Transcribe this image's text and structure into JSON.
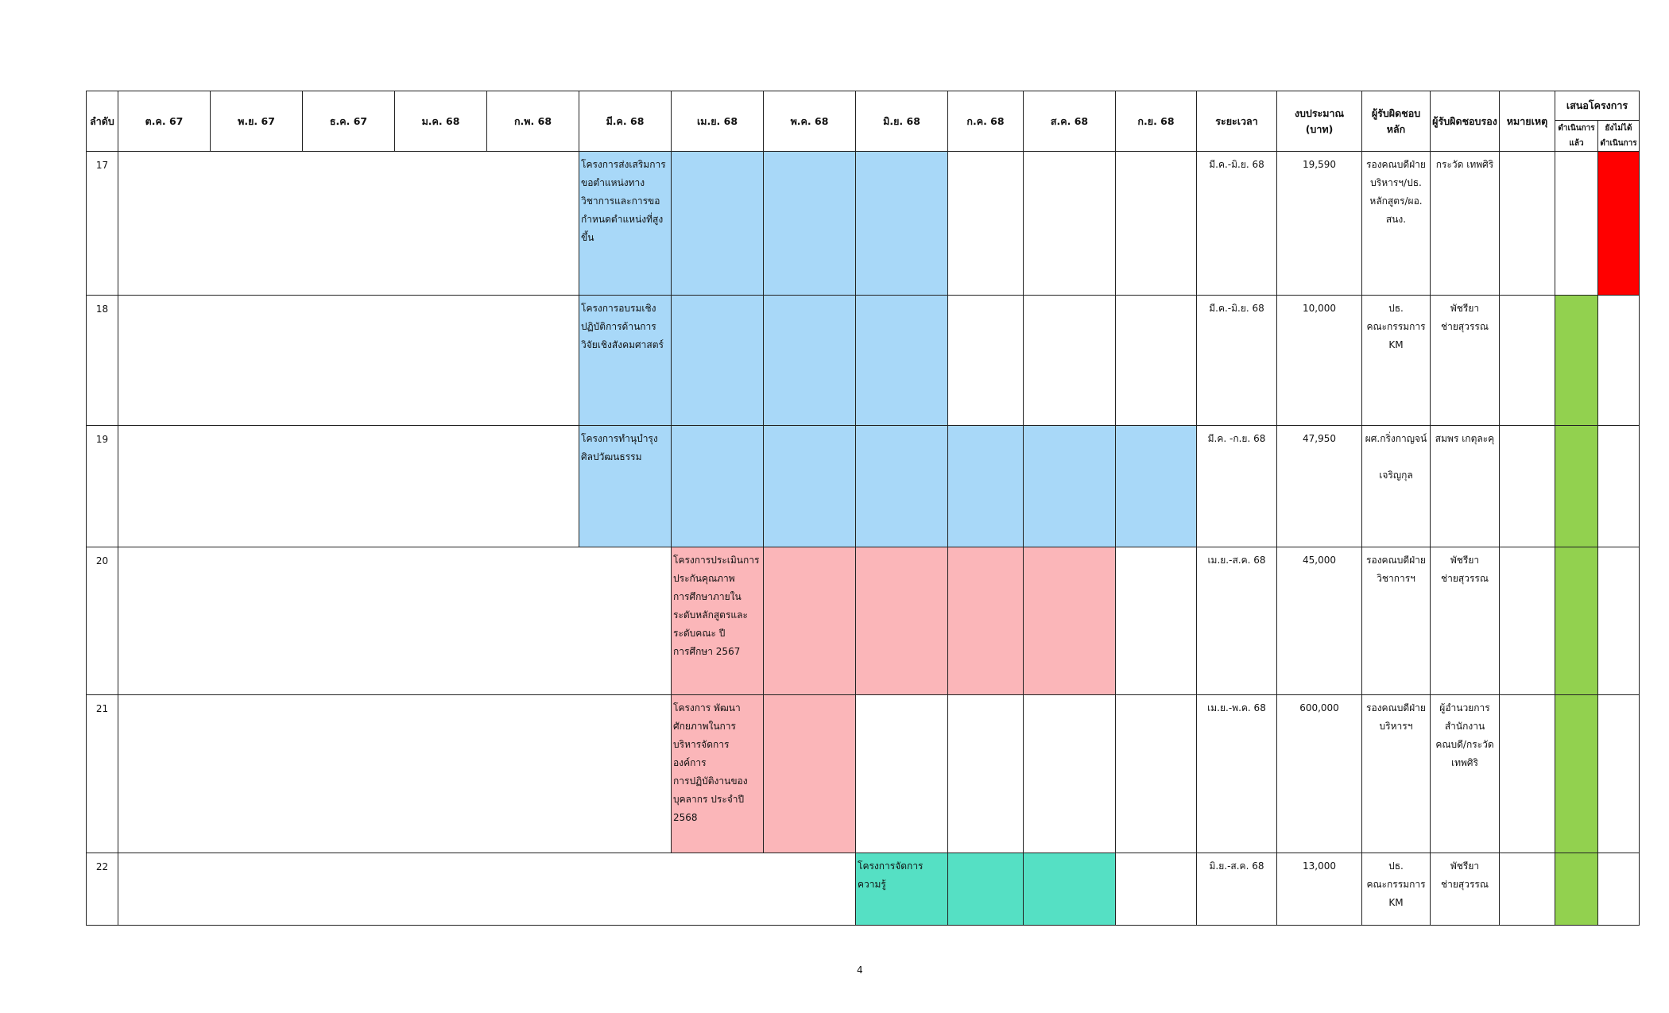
{
  "table": {
    "headers": {
      "order": "ลำดับ",
      "months": [
        "ต.ค. 67",
        "พ.ย. 67",
        "ธ.ค. 67",
        "ม.ค. 68",
        "ก.พ. 68",
        "มี.ค. 68",
        "เม.ย. 68",
        "พ.ค. 68",
        "มิ.ย. 68",
        "ก.ค. 68",
        "ส.ค. 68",
        "ก.ย. 68"
      ],
      "period": "ระยะเวลา",
      "budget_line1": "งบประมาณ",
      "budget_line2": "(บาท)",
      "responsible_main_line1": "ผู้รับผิดชอบ",
      "responsible_main_line2": "หลัก",
      "responsible_secondary": "ผู้รับผิดชอบรอง",
      "remarks": "หมายเหตุ",
      "proposal": "เสนอโครงการ",
      "done_line1": "ดำเนินการ",
      "done_line2": "แล้ว",
      "notyet_line1": "ยังไม่ได้",
      "notyet_line2": "ดำเนินการ"
    },
    "colors": {
      "bar_blue": "#a8d8f8",
      "bar_pink": "#fbb6b9",
      "bar_teal": "#55e0c4",
      "status_done": "#92d14f",
      "status_not_done": "#ff0000"
    },
    "rows": [
      {
        "no": "17",
        "project_lines": [
          "โครงการส่งเสริมการ",
          "ขอตำแหน่งทาง",
          "วิชาการและการขอ",
          "กำหนดตำแหน่งที่สูงขึ้น"
        ],
        "period": "มี.ค.-มิ.ย. 68",
        "budget": "19,590",
        "main_lines": [
          "รองคณบดีฝ่าย",
          "บริหารฯ/ปธ.",
          "หลักสูตร/ผอ.",
          "สนง."
        ],
        "secondary_lines": [
          "กระวัด เทพศิริ"
        ],
        "status": "not_done"
      },
      {
        "no": "18",
        "project_lines": [
          "โครงการอบรมเชิง",
          "ปฏิบัติการด้านการ",
          "วิจัยเชิงสังคมศาสตร์"
        ],
        "period": "มี.ค.-มิ.ย. 68",
        "budget": "10,000",
        "main_lines": [
          "ปธ.",
          "คณะกรรมการ",
          "KM"
        ],
        "secondary_lines": [
          "พัชรียา",
          "ช่ายสุวรรณ"
        ],
        "status": "done"
      },
      {
        "no": "19",
        "project_lines": [
          "โครงการทำนุบำรุง",
          "ศิลปวัฒนธรรม"
        ],
        "period": "มี.ค. -ก.ย. 68",
        "budget": "47,950",
        "main_lines": [
          "ผศ.กริ่งกาญจน์",
          "",
          "เจริญกุล"
        ],
        "secondary_lines": [
          "สมพร เกตุละคุ"
        ],
        "status": "done"
      },
      {
        "no": "20",
        "project_lines": [
          "โครงการประเมินการ",
          "ประกันคุณภาพ",
          "การศึกษาภายใน",
          "ระดับหลักสูตรและ",
          "ระดับคณะ ปี",
          "การศึกษา 2567"
        ],
        "period": "เม.ย.-ส.ค. 68",
        "budget": "45,000",
        "main_lines": [
          "รองคณบดีฝ่าย",
          "วิชาการฯ"
        ],
        "secondary_lines": [
          "พัชรียา",
          "ช่ายสุวรรณ"
        ],
        "status": "done"
      },
      {
        "no": "21",
        "project_lines": [
          "โครงการ พัฒนา",
          "ศักยภาพในการ",
          "บริหารจัดการองค์การ",
          " การปฏิบัติงานของ",
          "บุคลากร ประจำปี",
          "2568"
        ],
        "period": "เม.ย.-พ.ค. 68",
        "budget": "600,000",
        "main_lines": [
          "รองคณบดีฝ่าย",
          "บริหารฯ"
        ],
        "secondary_lines": [
          "ผู้อำนวยการ",
          "สำนักงาน",
          "คณบดี/กระวัด",
          "เทพศิริ"
        ],
        "status": "done"
      },
      {
        "no": "22",
        "project_lines": [
          "โครงการจัดการความรู้"
        ],
        "period": "มิ.ย.-ส.ค. 68",
        "budget": "13,000",
        "main_lines": [
          "ปธ.",
          "คณะกรรมการ",
          "KM"
        ],
        "secondary_lines": [
          "พัชรียา",
          "ช่ายสุวรรณ"
        ],
        "status": "done"
      }
    ]
  },
  "page_number": "4"
}
